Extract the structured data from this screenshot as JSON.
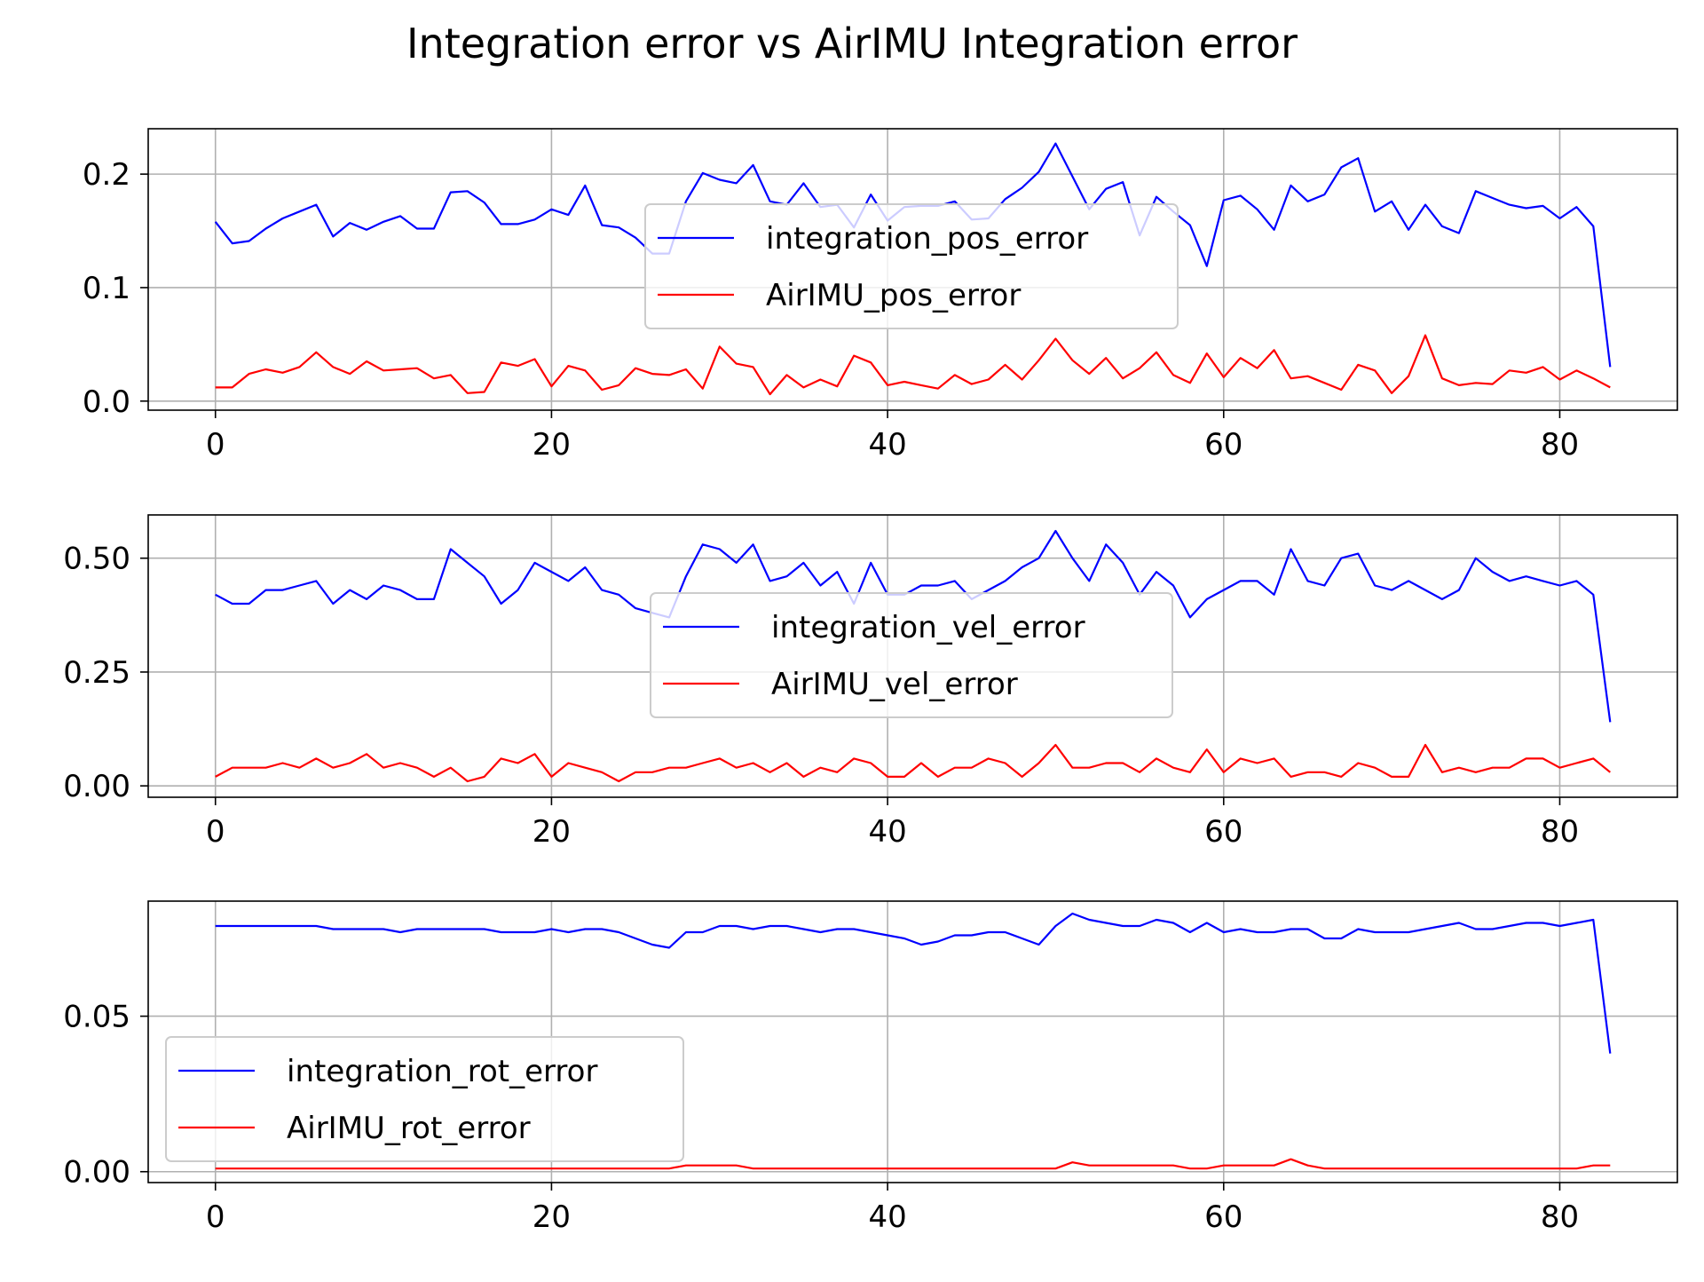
{
  "figure": {
    "title": "Integration error vs AirIMU Integration error"
  },
  "colors": {
    "integration": "#0000ff",
    "airimu": "#ff0000",
    "grid": "#b0b0b0",
    "axis": "#000000"
  },
  "chart_data": [
    {
      "type": "line",
      "title": "",
      "xlim": [
        -4,
        87
      ],
      "ylim": [
        -0.008,
        0.24
      ],
      "xticks": [
        0,
        20,
        40,
        60,
        80
      ],
      "xtick_labels": [
        "0",
        "20",
        "40",
        "60",
        "80"
      ],
      "yticks": [
        0.0,
        0.1,
        0.2
      ],
      "ytick_labels": [
        "0.0",
        "0.1",
        "0.2"
      ],
      "grid": true,
      "legend_position": "center",
      "series": [
        {
          "name": "integration_pos_error",
          "color": "#0000ff",
          "values": [
            0.158,
            0.139,
            0.141,
            0.152,
            0.161,
            0.167,
            0.173,
            0.145,
            0.157,
            0.151,
            0.158,
            0.163,
            0.152,
            0.152,
            0.184,
            0.185,
            0.175,
            0.156,
            0.156,
            0.16,
            0.169,
            0.164,
            0.19,
            0.155,
            0.153,
            0.144,
            0.13,
            0.13,
            0.176,
            0.201,
            0.195,
            0.192,
            0.208,
            0.176,
            0.173,
            0.192,
            0.171,
            0.173,
            0.153,
            0.182,
            0.159,
            0.171,
            0.172,
            0.172,
            0.176,
            0.16,
            0.161,
            0.178,
            0.188,
            0.202,
            0.227,
            0.198,
            0.169,
            0.187,
            0.193,
            0.146,
            0.18,
            0.167,
            0.155,
            0.119,
            0.177,
            0.181,
            0.169,
            0.151,
            0.19,
            0.176,
            0.182,
            0.206,
            0.214,
            0.167,
            0.176,
            0.151,
            0.173,
            0.154,
            0.148,
            0.185,
            0.179,
            0.173,
            0.17,
            0.172,
            0.161,
            0.171,
            0.154,
            0.03
          ]
        },
        {
          "name": "AirIMU_pos_error",
          "color": "#ff0000",
          "values": [
            0.012,
            0.012,
            0.024,
            0.028,
            0.025,
            0.03,
            0.043,
            0.03,
            0.024,
            0.035,
            0.027,
            0.028,
            0.029,
            0.02,
            0.023,
            0.007,
            0.008,
            0.034,
            0.031,
            0.037,
            0.013,
            0.031,
            0.027,
            0.01,
            0.014,
            0.029,
            0.024,
            0.023,
            0.028,
            0.011,
            0.048,
            0.033,
            0.03,
            0.006,
            0.023,
            0.012,
            0.019,
            0.013,
            0.04,
            0.034,
            0.014,
            0.017,
            0.014,
            0.011,
            0.023,
            0.015,
            0.019,
            0.032,
            0.019,
            0.036,
            0.055,
            0.036,
            0.024,
            0.038,
            0.02,
            0.029,
            0.043,
            0.023,
            0.016,
            0.042,
            0.021,
            0.038,
            0.029,
            0.045,
            0.02,
            0.022,
            0.016,
            0.01,
            0.032,
            0.027,
            0.007,
            0.022,
            0.058,
            0.02,
            0.014,
            0.016,
            0.015,
            0.027,
            0.025,
            0.03,
            0.019,
            0.027,
            0.02,
            0.012
          ]
        }
      ]
    },
    {
      "type": "line",
      "title": "",
      "xlim": [
        -4,
        87
      ],
      "ylim": [
        -0.025,
        0.595
      ],
      "xticks": [
        0,
        20,
        40,
        60,
        80
      ],
      "xtick_labels": [
        "0",
        "20",
        "40",
        "60",
        "80"
      ],
      "yticks": [
        0.0,
        0.25,
        0.5
      ],
      "ytick_labels": [
        "0.00",
        "0.25",
        "0.50"
      ],
      "grid": true,
      "legend_position": "center",
      "series": [
        {
          "name": "integration_vel_error",
          "color": "#0000ff",
          "values": [
            0.42,
            0.4,
            0.4,
            0.43,
            0.43,
            0.44,
            0.45,
            0.4,
            0.43,
            0.41,
            0.44,
            0.43,
            0.41,
            0.41,
            0.52,
            0.49,
            0.46,
            0.4,
            0.43,
            0.49,
            0.47,
            0.45,
            0.48,
            0.43,
            0.42,
            0.39,
            0.38,
            0.37,
            0.46,
            0.53,
            0.52,
            0.49,
            0.53,
            0.45,
            0.46,
            0.49,
            0.44,
            0.47,
            0.4,
            0.49,
            0.42,
            0.42,
            0.44,
            0.44,
            0.45,
            0.41,
            0.43,
            0.45,
            0.48,
            0.5,
            0.56,
            0.5,
            0.45,
            0.53,
            0.49,
            0.42,
            0.47,
            0.44,
            0.37,
            0.41,
            0.43,
            0.45,
            0.45,
            0.42,
            0.52,
            0.45,
            0.44,
            0.5,
            0.51,
            0.44,
            0.43,
            0.45,
            0.43,
            0.41,
            0.43,
            0.5,
            0.47,
            0.45,
            0.46,
            0.45,
            0.44,
            0.45,
            0.42,
            0.14
          ]
        },
        {
          "name": "AirIMU_vel_error",
          "color": "#ff0000",
          "values": [
            0.02,
            0.04,
            0.04,
            0.04,
            0.05,
            0.04,
            0.06,
            0.04,
            0.05,
            0.07,
            0.04,
            0.05,
            0.04,
            0.02,
            0.04,
            0.01,
            0.02,
            0.06,
            0.05,
            0.07,
            0.02,
            0.05,
            0.04,
            0.03,
            0.01,
            0.03,
            0.03,
            0.04,
            0.04,
            0.05,
            0.06,
            0.04,
            0.05,
            0.03,
            0.05,
            0.02,
            0.04,
            0.03,
            0.06,
            0.05,
            0.02,
            0.02,
            0.05,
            0.02,
            0.04,
            0.04,
            0.06,
            0.05,
            0.02,
            0.05,
            0.09,
            0.04,
            0.04,
            0.05,
            0.05,
            0.03,
            0.06,
            0.04,
            0.03,
            0.08,
            0.03,
            0.06,
            0.05,
            0.06,
            0.02,
            0.03,
            0.03,
            0.02,
            0.05,
            0.04,
            0.02,
            0.02,
            0.09,
            0.03,
            0.04,
            0.03,
            0.04,
            0.04,
            0.06,
            0.06,
            0.04,
            0.05,
            0.06,
            0.03
          ]
        }
      ]
    },
    {
      "type": "line",
      "title": "",
      "xlim": [
        -4,
        87
      ],
      "ylim": [
        -0.0035,
        0.087
      ],
      "xticks": [
        0,
        20,
        40,
        60,
        80
      ],
      "xtick_labels": [
        "0",
        "20",
        "40",
        "60",
        "80"
      ],
      "yticks": [
        0.0,
        0.05
      ],
      "ytick_labels": [
        "0.00",
        "0.05"
      ],
      "grid": true,
      "legend_position": "lower left",
      "series": [
        {
          "name": "integration_rot_error",
          "color": "#0000ff",
          "values": [
            0.079,
            0.079,
            0.079,
            0.079,
            0.079,
            0.079,
            0.079,
            0.078,
            0.078,
            0.078,
            0.078,
            0.077,
            0.078,
            0.078,
            0.078,
            0.078,
            0.078,
            0.077,
            0.077,
            0.077,
            0.078,
            0.077,
            0.078,
            0.078,
            0.077,
            0.075,
            0.073,
            0.072,
            0.077,
            0.077,
            0.079,
            0.079,
            0.078,
            0.079,
            0.079,
            0.078,
            0.077,
            0.078,
            0.078,
            0.077,
            0.076,
            0.075,
            0.073,
            0.074,
            0.076,
            0.076,
            0.077,
            0.077,
            0.075,
            0.073,
            0.079,
            0.083,
            0.081,
            0.08,
            0.079,
            0.079,
            0.081,
            0.08,
            0.077,
            0.08,
            0.077,
            0.078,
            0.077,
            0.077,
            0.078,
            0.078,
            0.075,
            0.075,
            0.078,
            0.077,
            0.077,
            0.077,
            0.078,
            0.079,
            0.08,
            0.078,
            0.078,
            0.079,
            0.08,
            0.08,
            0.079,
            0.08,
            0.081,
            0.038
          ]
        },
        {
          "name": "AirIMU_rot_error",
          "color": "#ff0000",
          "values": [
            0.001,
            0.001,
            0.001,
            0.001,
            0.001,
            0.001,
            0.001,
            0.001,
            0.001,
            0.001,
            0.001,
            0.001,
            0.001,
            0.001,
            0.001,
            0.001,
            0.001,
            0.001,
            0.001,
            0.001,
            0.001,
            0.001,
            0.001,
            0.001,
            0.001,
            0.001,
            0.001,
            0.001,
            0.002,
            0.002,
            0.002,
            0.002,
            0.001,
            0.001,
            0.001,
            0.001,
            0.001,
            0.001,
            0.001,
            0.001,
            0.001,
            0.001,
            0.001,
            0.001,
            0.001,
            0.001,
            0.001,
            0.001,
            0.001,
            0.001,
            0.001,
            0.003,
            0.002,
            0.002,
            0.002,
            0.002,
            0.002,
            0.002,
            0.001,
            0.001,
            0.002,
            0.002,
            0.002,
            0.002,
            0.004,
            0.002,
            0.001,
            0.001,
            0.001,
            0.001,
            0.001,
            0.001,
            0.001,
            0.001,
            0.001,
            0.001,
            0.001,
            0.001,
            0.001,
            0.001,
            0.001,
            0.001,
            0.002,
            0.002
          ]
        }
      ]
    }
  ]
}
